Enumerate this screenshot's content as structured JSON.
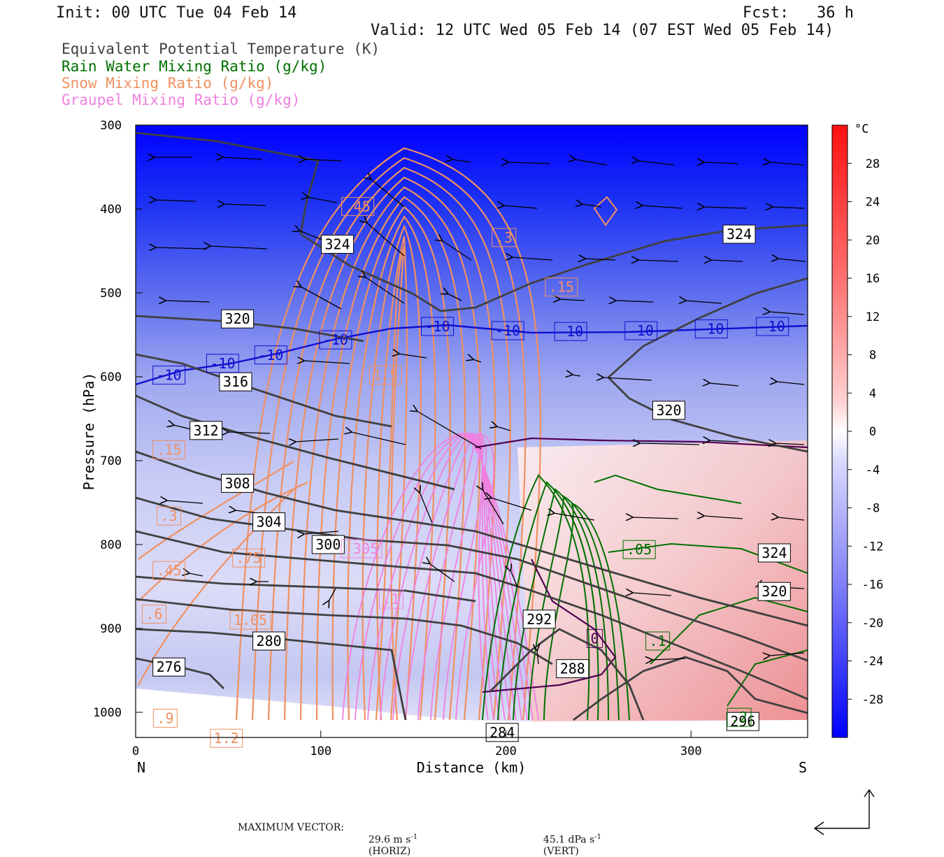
{
  "header": {
    "init": "Init: 00 UTC Tue 04 Feb 14",
    "fcst": "Fcst:   36 h",
    "valid": "Valid: 12 UTC Wed 05 Feb 14 (07 EST Wed 05 Feb 14)"
  },
  "legend": {
    "theta_e": "Equivalent Potential Temperature (K)",
    "rain": "Rain Water Mixing Ratio (g/kg)",
    "snow": "Snow Mixing Ratio (g/kg)",
    "graupel": "Graupel Mixing Ratio (g/kg)"
  },
  "colors": {
    "theta_e": "#404040",
    "rain": "#007000",
    "snow": "#f09060",
    "graupel": "#f080e0",
    "isotherm": "#1010d0",
    "zero_isotherm": "#500050"
  },
  "footer": {
    "label": "MAXIMUM VECTOR:",
    "horiz": "29.6 m s",
    "horiz_unit": "(HORIZ)",
    "vert": "45.1 dPa s",
    "vert_unit": "(VERT)",
    "exp": "-1"
  },
  "chart_data": {
    "type": "cross-section contour",
    "xlabel": "Distance (km)",
    "ylabel": "Pressure (hPa)",
    "xlim": [
      0,
      363
    ],
    "ylim": [
      1030,
      300
    ],
    "x_ticks": [
      0,
      100,
      200,
      300
    ],
    "y_ticks": [
      300,
      400,
      500,
      600,
      700,
      800,
      900,
      1000
    ],
    "x_end_labels": {
      "left": "N",
      "right": "S"
    },
    "colorbar": {
      "unit": "°C",
      "ticks": [
        28,
        24,
        20,
        16,
        12,
        8,
        4,
        0,
        -4,
        -8,
        -12,
        -16,
        -20,
        -24,
        -28
      ],
      "range": [
        -32,
        32
      ]
    },
    "theta_e_labels": [
      {
        "text": "324",
        "x": 109,
        "p": 442
      },
      {
        "text": "324",
        "x": 326,
        "p": 430
      },
      {
        "text": "320",
        "x": 55,
        "p": 531
      },
      {
        "text": "316",
        "x": 54,
        "p": 606
      },
      {
        "text": "320",
        "x": 288,
        "p": 640
      },
      {
        "text": "312",
        "x": 38,
        "p": 664
      },
      {
        "text": "308",
        "x": 55,
        "p": 727
      },
      {
        "text": "304",
        "x": 72,
        "p": 773
      },
      {
        "text": "300",
        "x": 104,
        "p": 800
      },
      {
        "text": "324",
        "x": 345,
        "p": 810
      },
      {
        "text": "320",
        "x": 345,
        "p": 856
      },
      {
        "text": "292",
        "x": 218,
        "p": 889
      },
      {
        "text": "280",
        "x": 72,
        "p": 915
      },
      {
        "text": "276",
        "x": 18,
        "p": 946
      },
      {
        "text": "288",
        "x": 236,
        "p": 948
      },
      {
        "text": "284",
        "x": 198,
        "p": 1024
      },
      {
        "text": "296",
        "x": 328,
        "p": 1011
      }
    ],
    "isotherm_labels": [
      {
        "text": "-10",
        "x": 18,
        "p": 598
      },
      {
        "text": "-10",
        "x": 47,
        "p": 584
      },
      {
        "text": "-10",
        "x": 73,
        "p": 574
      },
      {
        "text": "-10",
        "x": 108,
        "p": 556
      },
      {
        "text": "-10",
        "x": 163,
        "p": 540
      },
      {
        "text": "-10",
        "x": 201,
        "p": 545
      },
      {
        "text": "-10",
        "x": 235,
        "p": 546
      },
      {
        "text": "-10",
        "x": 273,
        "p": 545
      },
      {
        "text": "-10",
        "x": 311,
        "p": 543
      },
      {
        "text": "-10",
        "x": 344,
        "p": 540
      }
    ],
    "snow_labels": [
      {
        "text": ".45",
        "x": 120,
        "p": 397
      },
      {
        "text": ".3",
        "x": 199,
        "p": 434
      },
      {
        "text": ".15",
        "x": 230,
        "p": 493
      },
      {
        "text": "1.5",
        "x": 135,
        "p": 598
      },
      {
        "text": ".15",
        "x": 18,
        "p": 687
      },
      {
        "text": ".3",
        "x": 18,
        "p": 766
      },
      {
        "text": ".75",
        "x": 61,
        "p": 816
      },
      {
        "text": ".45",
        "x": 18,
        "p": 831
      },
      {
        "text": ".6",
        "x": 10,
        "p": 883
      },
      {
        "text": "1.05",
        "x": 62,
        "p": 890
      },
      {
        "text": ".9",
        "x": 16,
        "p": 1007
      },
      {
        "text": "1.2",
        "x": 49,
        "p": 1031
      }
    ],
    "graupel_labels": [
      {
        "text": ".305",
        "x": 122,
        "p": 805
      },
      {
        "text": ".1",
        "x": 138,
        "p": 865
      }
    ],
    "rain_labels": [
      {
        "text": ".05",
        "x": 272,
        "p": 806
      },
      {
        "text": ".1",
        "x": 282,
        "p": 915
      },
      {
        "text": ".2",
        "x": 326,
        "p": 1006
      }
    ],
    "zero_isotherm_labels": [
      {
        "text": "0",
        "x": 248,
        "p": 912
      }
    ]
  }
}
